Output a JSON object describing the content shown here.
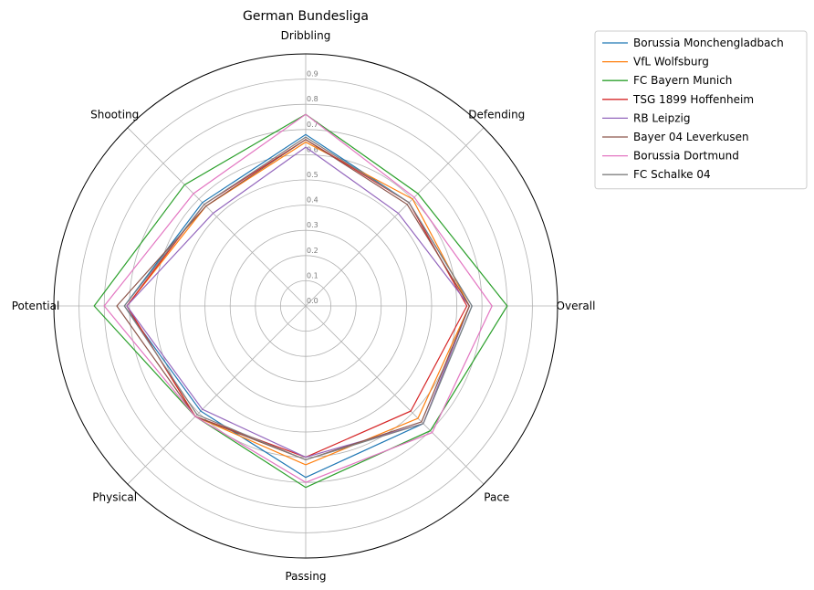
{
  "chart_data": {
    "type": "radar",
    "title": "German Bundesliga",
    "categories": [
      "Overall",
      "Defending",
      "Dribbling",
      "Shooting",
      "Potential",
      "Physical",
      "Passing",
      "Pace"
    ],
    "r_ticks": [
      "0.0",
      "0.1",
      "0.2",
      "0.3",
      "0.4",
      "0.5",
      "0.6",
      "0.7",
      "0.8",
      "0.9"
    ],
    "rlim": [
      0,
      1
    ],
    "grid": true,
    "legend_position": "outside upper right",
    "series": [
      {
        "name": "Borussia Monchengladbach",
        "color": "#1f77b4",
        "values": [
          0.66,
          0.58,
          0.68,
          0.58,
          0.72,
          0.59,
          0.68,
          0.66
        ]
      },
      {
        "name": "VfL Wolfsburg",
        "color": "#ff7f0e",
        "values": [
          0.65,
          0.6,
          0.65,
          0.56,
          0.71,
          0.62,
          0.63,
          0.63
        ]
      },
      {
        "name": "FC Bayern Munich",
        "color": "#2ca02c",
        "values": [
          0.8,
          0.63,
          0.76,
          0.68,
          0.84,
          0.62,
          0.72,
          0.7
        ]
      },
      {
        "name": "TSG 1899 Hoffenheim",
        "color": "#d62728",
        "values": [
          0.64,
          0.58,
          0.66,
          0.57,
          0.71,
          0.62,
          0.6,
          0.59
        ]
      },
      {
        "name": "RB Leipzig",
        "color": "#9467bd",
        "values": [
          0.65,
          0.52,
          0.63,
          0.52,
          0.71,
          0.58,
          0.6,
          0.66
        ]
      },
      {
        "name": "Bayer 04 Leverkusen",
        "color": "#8c564b",
        "values": [
          0.65,
          0.57,
          0.66,
          0.56,
          0.75,
          0.62,
          0.61,
          0.65
        ]
      },
      {
        "name": "Borussia Dortmund",
        "color": "#e377c2",
        "values": [
          0.74,
          0.61,
          0.76,
          0.63,
          0.8,
          0.62,
          0.7,
          0.71
        ]
      },
      {
        "name": "FC Schalke 04",
        "color": "#7f7f7f",
        "values": [
          0.66,
          0.58,
          0.67,
          0.57,
          0.72,
          0.61,
          0.61,
          0.66
        ]
      }
    ]
  }
}
